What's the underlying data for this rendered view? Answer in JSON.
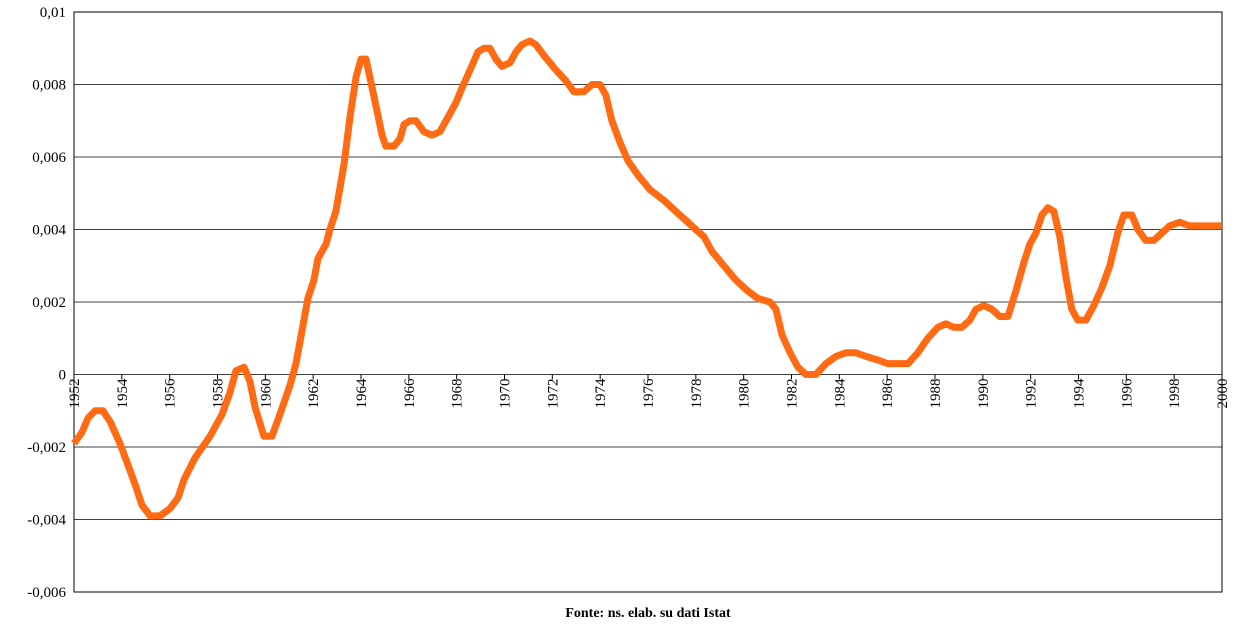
{
  "chart_data": {
    "type": "line",
    "note": "Fonte: ns. elab. su dati Istat",
    "xlim": [
      1952,
      2000
    ],
    "xticks": [
      1952,
      1954,
      1956,
      1958,
      1960,
      1962,
      1964,
      1966,
      1968,
      1970,
      1972,
      1974,
      1976,
      1978,
      1980,
      1982,
      1984,
      1986,
      1988,
      1990,
      1992,
      1994,
      1996,
      1998,
      2000
    ],
    "ylim": [
      -0.006,
      0.01
    ],
    "yticks": [
      {
        "value": -0.006,
        "label": "-0,006"
      },
      {
        "value": -0.004,
        "label": "-0,004"
      },
      {
        "value": -0.002,
        "label": "-0,002"
      },
      0,
      {
        "value": 0.002,
        "label": "0,002"
      },
      {
        "value": 0.004,
        "label": "0,004"
      },
      {
        "value": 0.006,
        "label": "0,006"
      },
      {
        "value": 0.008,
        "label": "0,008"
      },
      {
        "value": 0.01,
        "label": "0,01"
      }
    ],
    "grid": true,
    "x": [
      1952.0,
      1952.33,
      1952.59,
      1952.88,
      1953.21,
      1953.51,
      1953.92,
      1954.26,
      1954.59,
      1954.84,
      1955.18,
      1955.6,
      1956.01,
      1956.35,
      1956.6,
      1957.06,
      1957.69,
      1958.19,
      1958.52,
      1958.77,
      1959.11,
      1959.36,
      1959.57,
      1959.94,
      1960.28,
      1960.61,
      1961.03,
      1961.28,
      1961.53,
      1961.78,
      1962.03,
      1962.2,
      1962.54,
      1962.7,
      1962.95,
      1963.29,
      1963.54,
      1963.79,
      1964.0,
      1964.21,
      1964.37,
      1964.63,
      1964.88,
      1965.04,
      1965.38,
      1965.63,
      1965.8,
      1966.05,
      1966.3,
      1966.63,
      1966.97,
      1967.3,
      1967.64,
      1967.97,
      1968.22,
      1968.56,
      1968.89,
      1969.14,
      1969.39,
      1969.64,
      1969.89,
      1970.23,
      1970.48,
      1970.73,
      1971.06,
      1971.31,
      1971.65,
      1972.15,
      1972.57,
      1972.9,
      1973.32,
      1973.66,
      1973.99,
      1974.24,
      1974.49,
      1974.83,
      1975.16,
      1975.58,
      1976.08,
      1976.67,
      1977.33,
      1978.0,
      1978.34,
      1978.67,
      1979.17,
      1979.68,
      1980.18,
      1980.59,
      1981.1,
      1981.35,
      1981.6,
      1981.94,
      1982.27,
      1982.6,
      1983.02,
      1983.44,
      1983.86,
      1984.27,
      1984.69,
      1985.11,
      1985.61,
      1986.03,
      1986.45,
      1986.87,
      1987.28,
      1987.7,
      1988.12,
      1988.46,
      1988.79,
      1989.12,
      1989.46,
      1989.71,
      1990.04,
      1990.38,
      1990.71,
      1991.05,
      1991.38,
      1991.72,
      1991.97,
      1992.22,
      1992.47,
      1992.72,
      1992.97,
      1993.22,
      1993.47,
      1993.72,
      1993.97,
      1994.31,
      1994.64,
      1994.98,
      1995.31,
      1995.64,
      1995.89,
      1996.23,
      1996.48,
      1996.81,
      1997.15,
      1997.48,
      1997.81,
      1998.23,
      1998.65,
      1999.07,
      2000.0
    ],
    "series": [
      {
        "color": "#ff6a13",
        "values": [
          -0.0019,
          -0.0016,
          -0.0012,
          -0.001,
          -0.001,
          -0.0013,
          -0.0019,
          -0.0025,
          -0.0031,
          -0.0036,
          -0.0039,
          -0.0039,
          -0.0037,
          -0.0034,
          -0.0029,
          -0.0023,
          -0.0017,
          -0.0011,
          -0.0005,
          0.0001,
          0.0002,
          -0.0002,
          -0.0009,
          -0.0017,
          -0.0017,
          -0.0011,
          -0.0003,
          0.0003,
          0.0012,
          0.0021,
          0.0026,
          0.0032,
          0.0036,
          0.004,
          0.0045,
          0.0058,
          0.0071,
          0.0082,
          0.0087,
          0.0087,
          0.0082,
          0.0074,
          0.0066,
          0.0063,
          0.0063,
          0.0065,
          0.0069,
          0.007,
          0.007,
          0.0067,
          0.0066,
          0.0067,
          0.0071,
          0.0075,
          0.0079,
          0.0084,
          0.0089,
          0.009,
          0.009,
          0.0087,
          0.0085,
          0.0086,
          0.0089,
          0.0091,
          0.0092,
          0.0091,
          0.0088,
          0.0084,
          0.0081,
          0.0078,
          0.0078,
          0.008,
          0.008,
          0.0077,
          0.007,
          0.0064,
          0.0059,
          0.0055,
          0.0051,
          0.0048,
          0.0044,
          0.004,
          0.0038,
          0.0034,
          0.003,
          0.0026,
          0.0023,
          0.0021,
          0.002,
          0.0018,
          0.0011,
          0.0006,
          0.0002,
          0.0,
          0.0,
          0.0003,
          0.0005,
          0.0006,
          0.0006,
          0.0005,
          0.0004,
          0.0003,
          0.0003,
          0.0003,
          0.0006,
          0.001,
          0.0013,
          0.0014,
          0.0013,
          0.0013,
          0.0015,
          0.0018,
          0.0019,
          0.0018,
          0.0016,
          0.0016,
          0.0023,
          0.0031,
          0.0036,
          0.0039,
          0.0044,
          0.0046,
          0.0045,
          0.0038,
          0.0027,
          0.0018,
          0.0015,
          0.0015,
          0.0019,
          0.0024,
          0.003,
          0.0039,
          0.0044,
          0.0044,
          0.004,
          0.0037,
          0.0037,
          0.0039,
          0.0041,
          0.0042,
          0.0041,
          0.0041,
          0.0041
        ]
      }
    ]
  }
}
